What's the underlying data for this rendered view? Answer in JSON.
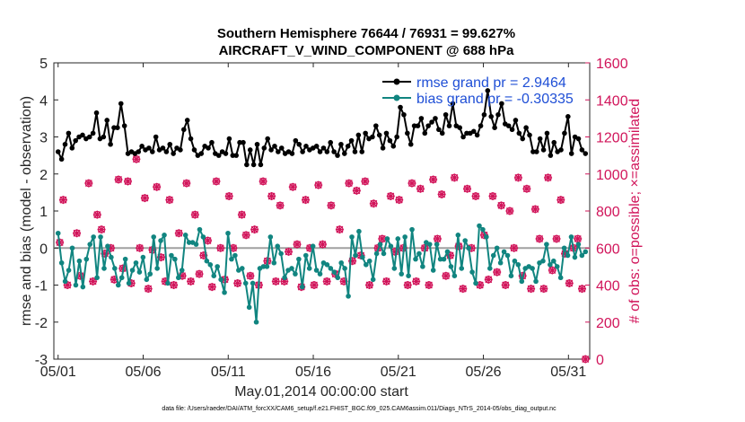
{
  "chart_data": {
    "type": "line",
    "title_line1": "Southern Hemisphere 76644 / 76931 = 99.627%",
    "title_line2": "AIRCRAFT_V_WIND_COMPONENT @ 688 hPa",
    "xlabel": "May.01,2014 00:00:00 start",
    "ylabel": "rmse and bias (model - observation)",
    "y2label": "# of obs: o=possible; ×=assimilated",
    "x_range": [
      1,
      32
    ],
    "xlim": [
      0.75,
      32.25
    ],
    "ylim": [
      -3,
      5
    ],
    "y2lim": [
      0,
      1600
    ],
    "x_ticks": [
      1,
      6,
      11,
      16,
      21,
      26,
      31
    ],
    "x_tick_labels": [
      "05/01",
      "05/06",
      "05/11",
      "05/16",
      "05/21",
      "05/26",
      "05/31"
    ],
    "y_ticks": [
      -3,
      -2,
      -1,
      0,
      1,
      2,
      3,
      4,
      5
    ],
    "y_tick_labels": [
      "-3",
      "-2",
      "-1",
      "0",
      "1",
      "2",
      "3",
      "4",
      "5"
    ],
    "y2_ticks": [
      0,
      200,
      400,
      600,
      800,
      1000,
      1200,
      1400,
      1600
    ],
    "y2_tick_labels": [
      "0",
      "200",
      "400",
      "600",
      "800",
      "1000",
      "1200",
      "1400",
      "1600"
    ],
    "zero_line": 0,
    "legend_position": "top-right",
    "series": [
      {
        "name": "rmse grand pr = 2.9464",
        "color": "#000000",
        "marker": "circle",
        "values": [
          2.6,
          2.4,
          2.8,
          3.1,
          2.7,
          2.9,
          3.0,
          3.05,
          2.95,
          3.0,
          3.1,
          3.65,
          2.95,
          3.0,
          3.45,
          2.8,
          3.25,
          3.25,
          3.9,
          3.3,
          2.55,
          2.6,
          2.55,
          2.6,
          2.75,
          2.65,
          2.7,
          2.6,
          3.0,
          2.65,
          2.7,
          2.6,
          2.8,
          2.55,
          2.7,
          2.65,
          3.2,
          3.45,
          2.95,
          2.65,
          2.5,
          2.55,
          2.75,
          2.7,
          2.85,
          2.55,
          2.5,
          2.6,
          2.55,
          2.95,
          2.5,
          2.5,
          2.85,
          2.85,
          2.25,
          2.65,
          2.25,
          2.8,
          2.25,
          2.7,
          2.95,
          2.65,
          2.75,
          2.6,
          2.7,
          2.55,
          2.6,
          2.55,
          2.9,
          2.8,
          2.6,
          2.75,
          2.65,
          2.7,
          2.75,
          2.6,
          2.7,
          2.6,
          2.85,
          2.6,
          2.5,
          2.8,
          2.55,
          2.75,
          2.9,
          2.6,
          3.05,
          2.6,
          3.1,
          2.95,
          3.0,
          3.3,
          3.05,
          2.7,
          3.1,
          2.9,
          2.75,
          3.0,
          3.8,
          3.6,
          3.1,
          2.8,
          3.3,
          3.3,
          3.5,
          3.1,
          3.3,
          3.4,
          3.5,
          3.2,
          3.1,
          3.6,
          3.3,
          3.9,
          3.3,
          3.25,
          3.0,
          3.1,
          3.1,
          3.15,
          3.05,
          3.3,
          3.6,
          4.25,
          3.55,
          3.25,
          3.6,
          3.9,
          3.35,
          3.3,
          3.2,
          3.45,
          3.1,
          2.95,
          3.25,
          3.05,
          2.6,
          2.6,
          2.95,
          2.65,
          3.1,
          2.5,
          2.85,
          2.6,
          2.65,
          3.1,
          3.55,
          2.55,
          3.0,
          2.95,
          2.65,
          2.55
        ]
      },
      {
        "name": "bias grand pr = -0.30335",
        "color": "#118580",
        "marker": "circle",
        "values": [
          0.4,
          -0.4,
          -0.9,
          -0.6,
          0.0,
          -1.0,
          -0.35,
          -1.05,
          -0.3,
          0.1,
          0.3,
          -0.8,
          0.3,
          -0.55,
          0.05,
          -0.25,
          -0.55,
          -1.0,
          -0.8,
          -0.3,
          -0.95,
          -0.6,
          -0.4,
          -0.65,
          -0.25,
          -0.85,
          -0.7,
          0.3,
          -0.55,
          0.2,
          0.35,
          -0.95,
          -0.2,
          -0.3,
          -0.8,
          -0.6,
          0.35,
          0.15,
          0.15,
          0.1,
          0.5,
          0.3,
          -0.35,
          -0.45,
          -0.75,
          -0.5,
          -0.85,
          -1.2,
          0.4,
          -0.3,
          -0.2,
          -0.6,
          -0.55,
          -0.95,
          -1.6,
          -0.95,
          -2.0,
          -0.55,
          -0.5,
          -0.5,
          0.3,
          -0.4,
          0.05,
          -0.15,
          -0.8,
          -0.6,
          -0.55,
          -0.7,
          -0.3,
          -1.05,
          -0.2,
          -0.55,
          0.05,
          -0.6,
          -0.7,
          -0.4,
          -0.45,
          -0.55,
          -0.65,
          -0.8,
          -0.4,
          -0.55,
          -1.3,
          0.3,
          -0.2,
          0.45,
          -0.25,
          -0.45,
          -0.35,
          -0.85,
          -0.15,
          0.1,
          -0.15,
          0.25,
          0.05,
          -0.55,
          0.25,
          -0.7,
          0.3,
          -0.75,
          0.5,
          -0.3,
          -0.15,
          -0.5,
          0.15,
          0.1,
          -0.6,
          0.1,
          -0.3,
          -0.3,
          -0.1,
          -0.5,
          -0.75,
          0.35,
          -0.55,
          0.2,
          0.0,
          -0.65,
          -0.95,
          0.6,
          0.5,
          0.3,
          -0.55,
          -0.2,
          0.0,
          -0.4,
          -0.1,
          -0.2,
          -0.75,
          -0.35,
          -0.45,
          -0.9,
          -0.55,
          -0.5,
          -0.55,
          -0.9,
          -0.4,
          -0.35,
          0.1,
          -0.45,
          -0.35,
          -0.5,
          -0.8,
          0.0,
          -0.2,
          0.3,
          -0.25,
          0.1,
          -0.2,
          -0.1
        ]
      }
    ],
    "observations": {
      "name": "obs counts",
      "color": "#d1145a",
      "possible_marker": "circle",
      "assimilated_marker": "x",
      "x": [
        1.1,
        1.3,
        1.55,
        2.1,
        2.3,
        2.8,
        3.05,
        3.3,
        3.55,
        3.75,
        4.1,
        4.3,
        4.55,
        4.8,
        5.1,
        5.3,
        5.6,
        5.8,
        6.1,
        6.3,
        6.55,
        6.8,
        7.05,
        7.3,
        7.55,
        7.8,
        8.1,
        8.3,
        8.55,
        8.8,
        9.05,
        9.3,
        9.55,
        9.8,
        10.05,
        10.3,
        10.55,
        10.8,
        11.05,
        11.3,
        11.55,
        11.8,
        12.05,
        12.3,
        12.55,
        12.8,
        13.05,
        13.3,
        13.55,
        13.8,
        14.05,
        14.3,
        14.55,
        14.8,
        15.05,
        15.3,
        15.55,
        15.8,
        16.05,
        16.3,
        16.55,
        16.8,
        17.05,
        17.3,
        17.55,
        17.8,
        18.1,
        18.3,
        18.55,
        18.8,
        19.05,
        19.3,
        19.55,
        19.8,
        20.05,
        20.3,
        20.55,
        20.8,
        21.05,
        21.3,
        21.55,
        21.8,
        22.05,
        22.3,
        22.55,
        22.8,
        23.05,
        23.3,
        23.55,
        23.8,
        24.05,
        24.3,
        24.55,
        24.8,
        25.05,
        25.3,
        25.55,
        25.8,
        26.05,
        26.3,
        26.55,
        26.8,
        27.05,
        27.3,
        27.55,
        27.8,
        28.05,
        28.3,
        28.55,
        28.8,
        29.05,
        29.3,
        29.55,
        29.8,
        30.05,
        30.3,
        30.55,
        30.8,
        31.05,
        31.3,
        31.55,
        31.8,
        32.0
      ],
      "counts": [
        630,
        860,
        400,
        680,
        450,
        950,
        420,
        780,
        700,
        570,
        600,
        430,
        970,
        490,
        960,
        410,
        1080,
        600,
        870,
        380,
        590,
        930,
        550,
        420,
        860,
        400,
        680,
        450,
        950,
        420,
        780,
        460,
        560,
        640,
        390,
        960,
        600,
        430,
        880,
        600,
        410,
        780,
        670,
        450,
        700,
        400,
        960,
        530,
        880,
        420,
        830,
        420,
        580,
        930,
        620,
        390,
        860,
        600,
        400,
        940,
        620,
        420,
        830,
        460,
        700,
        420,
        950,
        530,
        910,
        560,
        960,
        400,
        840,
        600,
        650,
        420,
        880,
        580,
        860,
        600,
        400,
        950,
        420,
        920,
        600,
        400,
        970,
        650,
        890,
        450,
        560,
        980,
        610,
        380,
        920,
        600,
        880,
        400,
        670,
        430,
        880,
        470,
        830,
        400,
        800,
        600,
        980,
        450,
        920,
        380,
        810,
        650,
        380,
        980,
        480,
        650,
        860,
        570,
        410,
        600,
        650,
        380,
        0
      ]
    }
  },
  "footer": {
    "datafile": "data file: /Users/raeder/DAI/ATM_forcXX/CAM6_setup/f.e21.FHIST_BGC.f09_025.CAM6assim.011/Diags_NTrS_2014-05/obs_diag_output.nc"
  }
}
